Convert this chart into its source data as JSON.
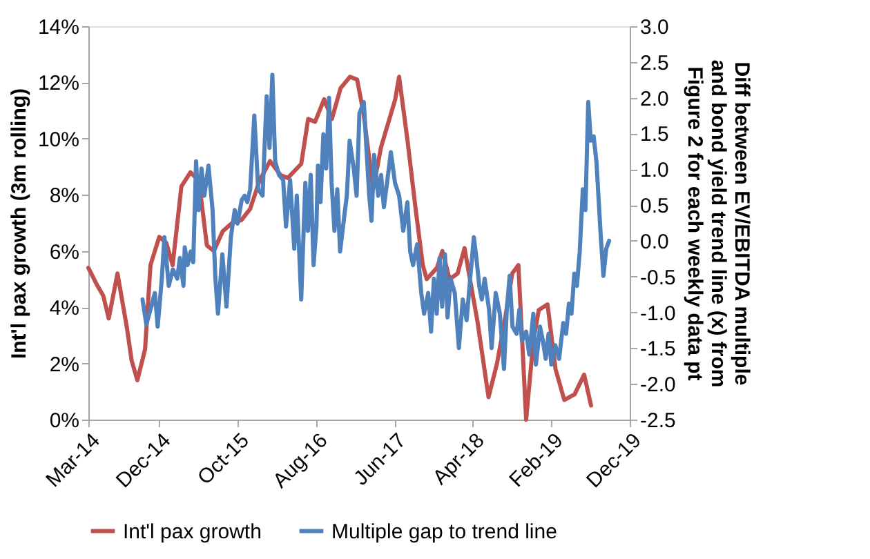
{
  "chart_data": {
    "type": "line",
    "ylabel": "Int'l pax growth (3m rolling)",
    "y2label": "Diff between EV/EBITDA multiple and bond yield trend line (x) from Figure 2 for each weekly data pt",
    "xlim": [
      "2014-03-01",
      "2019-12-01"
    ],
    "xticks": [
      {
        "value": "2014-03-01",
        "label": "Mar-14"
      },
      {
        "value": "2014-12-01",
        "label": "Dec-14"
      },
      {
        "value": "2015-10-01",
        "label": "Oct-15"
      },
      {
        "value": "2016-08-01",
        "label": "Aug-16"
      },
      {
        "value": "2017-06-01",
        "label": "Jun-17"
      },
      {
        "value": "2018-04-01",
        "label": "Apr-18"
      },
      {
        "value": "2019-02-01",
        "label": "Feb-19"
      },
      {
        "value": "2019-12-01",
        "label": "Dec-19"
      }
    ],
    "ylim": [
      0,
      14
    ],
    "yticks": [
      {
        "value": 0,
        "label": "0%"
      },
      {
        "value": 2,
        "label": "2%"
      },
      {
        "value": 4,
        "label": "4%"
      },
      {
        "value": 6,
        "label": "6%"
      },
      {
        "value": 8,
        "label": "8%"
      },
      {
        "value": 10,
        "label": "10%"
      },
      {
        "value": 12,
        "label": "12%"
      },
      {
        "value": 14,
        "label": "14%"
      }
    ],
    "y2lim": [
      -2.5,
      3
    ],
    "y2ticks": [
      {
        "value": -2.5,
        "label": "-2.5"
      },
      {
        "value": -2,
        "label": "-2.0"
      },
      {
        "value": -1.5,
        "label": "-1.5"
      },
      {
        "value": -1,
        "label": "-1.0"
      },
      {
        "value": -0.5,
        "label": "-0.5"
      },
      {
        "value": 0,
        "label": "0.0"
      },
      {
        "value": 0.5,
        "label": "0.5"
      },
      {
        "value": 1,
        "label": "1.0"
      },
      {
        "value": 1.5,
        "label": "1.5"
      },
      {
        "value": 2,
        "label": "2.0"
      },
      {
        "value": 2.5,
        "label": "2.5"
      },
      {
        "value": 3,
        "label": "3.0"
      }
    ],
    "grid": false,
    "legend": "bottom",
    "series": [
      {
        "name": "Int'l pax growth",
        "color": "#c0504d",
        "axis": "y",
        "x": [
          "2014-03-01",
          "2014-04-03",
          "2014-04-28",
          "2014-05-19",
          "2014-06-22",
          "2014-07-28",
          "2014-08-16",
          "2014-09-07",
          "2014-10-07",
          "2014-10-28",
          "2014-12-01",
          "2014-12-28",
          "2015-01-22",
          "2015-02-25",
          "2015-04-01",
          "2015-05-04",
          "2015-06-04",
          "2015-07-01",
          "2015-08-04",
          "2015-09-10",
          "2015-10-16",
          "2015-11-19",
          "2015-12-25",
          "2016-02-04",
          "2016-03-16",
          "2016-04-13",
          "2016-06-04",
          "2016-07-01",
          "2016-07-28",
          "2016-09-01",
          "2016-10-01",
          "2016-11-04",
          "2016-12-10",
          "2017-01-07",
          "2017-02-01",
          "2017-03-10",
          "2017-04-10",
          "2017-06-04",
          "2017-06-19",
          "2017-07-22",
          "2017-08-22",
          "2017-09-19",
          "2017-10-04",
          "2017-11-13",
          "2017-12-04",
          "2018-01-01",
          "2018-02-01",
          "2018-02-28",
          "2018-03-19",
          "2018-04-19",
          "2018-06-01",
          "2018-07-04",
          "2018-08-01",
          "2018-09-01",
          "2018-09-25",
          "2018-10-25",
          "2018-11-22",
          "2018-12-13",
          "2019-01-16",
          "2019-02-16",
          "2019-03-22",
          "2019-05-01",
          "2019-06-07",
          "2019-07-04"
        ],
        "values": [
          5.4,
          4.8,
          4.4,
          3.6,
          5.2,
          3.3,
          2.1,
          1.4,
          2.5,
          5.5,
          6.5,
          6.3,
          5.5,
          8.3,
          8.8,
          8.5,
          6.2,
          6.0,
          6.7,
          7.0,
          7.1,
          7.5,
          8.5,
          9.2,
          8.7,
          8.6,
          9.1,
          10.7,
          10.6,
          11.4,
          10.7,
          11.8,
          12.2,
          12.1,
          10.9,
          8.2,
          9.7,
          11.4,
          12.2,
          9.9,
          7.5,
          5.5,
          5.0,
          5.4,
          6.0,
          5.0,
          5.2,
          6.1,
          5.1,
          3.5,
          0.8,
          2.0,
          3.4,
          5.2,
          5.5,
          0.0,
          2.8,
          3.9,
          4.1,
          1.8,
          0.7,
          0.9,
          1.6,
          0.5
        ]
      },
      {
        "name": "Multiple gap to trend line",
        "color": "#4f81bd",
        "axis": "y2",
        "x": [
          "2014-09-27",
          "2014-10-12",
          "2014-10-28",
          "2014-11-14",
          "2014-11-25",
          "2014-12-11",
          "2014-12-21",
          "2015-01-07",
          "2015-01-23",
          "2015-02-09",
          "2015-02-19",
          "2015-03-05",
          "2015-03-10",
          "2015-03-21",
          "2015-04-02",
          "2015-04-12",
          "2015-04-23",
          "2015-05-03",
          "2015-05-14",
          "2015-05-25",
          "2015-06-10",
          "2015-06-26",
          "2015-07-07",
          "2015-07-17",
          "2015-08-03",
          "2015-08-19",
          "2015-09-05",
          "2015-09-20",
          "2015-10-01",
          "2015-10-17",
          "2015-10-28",
          "2015-11-08",
          "2015-11-19",
          "2015-12-05",
          "2015-12-20",
          "2016-01-06",
          "2016-01-22",
          "2016-02-02",
          "2016-02-13",
          "2016-02-24",
          "2016-03-10",
          "2016-03-26",
          "2016-04-06",
          "2016-04-22",
          "2016-05-08",
          "2016-05-18",
          "2016-06-04",
          "2016-06-20",
          "2016-06-30",
          "2016-07-11",
          "2016-07-22",
          "2016-08-02",
          "2016-08-08",
          "2016-08-18",
          "2016-08-29",
          "2016-09-09",
          "2016-09-20",
          "2016-09-30",
          "2016-10-11",
          "2016-10-22",
          "2016-11-02",
          "2016-11-18",
          "2016-11-28",
          "2016-12-09",
          "2016-12-25",
          "2017-01-05",
          "2017-01-16",
          "2017-02-02",
          "2017-02-12",
          "2017-02-23",
          "2017-03-04",
          "2017-03-14",
          "2017-03-30",
          "2017-04-10",
          "2017-04-21",
          "2017-05-07",
          "2017-05-18",
          "2017-06-03",
          "2017-06-19",
          "2017-07-05",
          "2017-07-21",
          "2017-08-01",
          "2017-08-12",
          "2017-08-28",
          "2017-09-13",
          "2017-09-24",
          "2017-10-10",
          "2017-10-21",
          "2017-11-01",
          "2017-11-12",
          "2017-11-23",
          "2017-12-03",
          "2017-12-14",
          "2017-12-24",
          "2018-01-05",
          "2018-01-21",
          "2018-02-06",
          "2018-02-21",
          "2018-03-08",
          "2018-03-24",
          "2018-04-05",
          "2018-04-15",
          "2018-04-26",
          "2018-05-06",
          "2018-05-17",
          "2018-06-03",
          "2018-06-13",
          "2018-06-29",
          "2018-07-15",
          "2018-07-31",
          "2018-08-11",
          "2018-08-22",
          "2018-09-02",
          "2018-09-18",
          "2018-09-29",
          "2018-10-09",
          "2018-10-25",
          "2018-11-06",
          "2018-11-22",
          "2018-12-02",
          "2018-12-18",
          "2018-12-29",
          "2019-01-09",
          "2019-01-20",
          "2019-01-31",
          "2019-02-15",
          "2019-03-02",
          "2019-03-18",
          "2019-03-29",
          "2019-04-09",
          "2019-04-19",
          "2019-04-30",
          "2019-05-10",
          "2019-05-21",
          "2019-06-02",
          "2019-06-12",
          "2019-06-23",
          "2019-07-03",
          "2019-07-14",
          "2019-07-25",
          "2019-08-10",
          "2019-08-21",
          "2019-09-01",
          "2019-09-12"
        ],
        "values": [
          -0.82,
          -1.17,
          -0.96,
          -0.73,
          -1.2,
          -0.53,
          0.05,
          -0.63,
          -0.4,
          -0.53,
          -0.24,
          -0.63,
          -0.09,
          -0.34,
          -0.15,
          -0.3,
          1.11,
          0.43,
          1.01,
          0.63,
          1.05,
          0.43,
          -0.53,
          -1.02,
          -0.19,
          -0.92,
          0.05,
          0.43,
          0.24,
          0.57,
          0.63,
          0.54,
          0.72,
          1.75,
          0.72,
          0.63,
          2.02,
          1.3,
          2.32,
          1.11,
          0.92,
          0.85,
          0.2,
          0.85,
          -0.11,
          0.63,
          -0.82,
          0.81,
          0.14,
          0.92,
          -0.34,
          0.2,
          1.05,
          0.54,
          1.49,
          1.01,
          2.0,
          0.81,
          0.14,
          0.72,
          -0.15,
          0.34,
          0.63,
          1.4,
          1.01,
          0.63,
          1.78,
          1.94,
          1.3,
          0.63,
          0.28,
          1.2,
          0.63,
          0.92,
          0.47,
          0.92,
          1.24,
          0.81,
          0.63,
          0.14,
          0.54,
          -0.15,
          -0.34,
          -0.05,
          -0.73,
          -1.02,
          -0.73,
          -1.27,
          -0.53,
          -1.02,
          -0.24,
          -0.92,
          -0.19,
          -1.07,
          -0.53,
          -0.73,
          -1.5,
          -0.82,
          -1.11,
          -0.44,
          0.05,
          -0.24,
          -0.63,
          -0.82,
          -0.53,
          -0.96,
          -1.5,
          -0.73,
          -1.02,
          -1.79,
          -0.96,
          -0.49,
          -1.2,
          -1.3,
          -0.96,
          -1.4,
          -1.27,
          -1.59,
          -1.02,
          -1.73,
          -1.2,
          -1.4,
          -1.65,
          -1.3,
          -1.73,
          -1.46,
          -1.65,
          -1.15,
          -1.3,
          -0.88,
          -1.02,
          -0.46,
          -0.63,
          -0.15,
          0.72,
          0.43,
          1.94,
          1.4,
          1.46,
          1.1,
          0.1,
          -0.49,
          -0.11,
          0.0
        ]
      }
    ]
  }
}
